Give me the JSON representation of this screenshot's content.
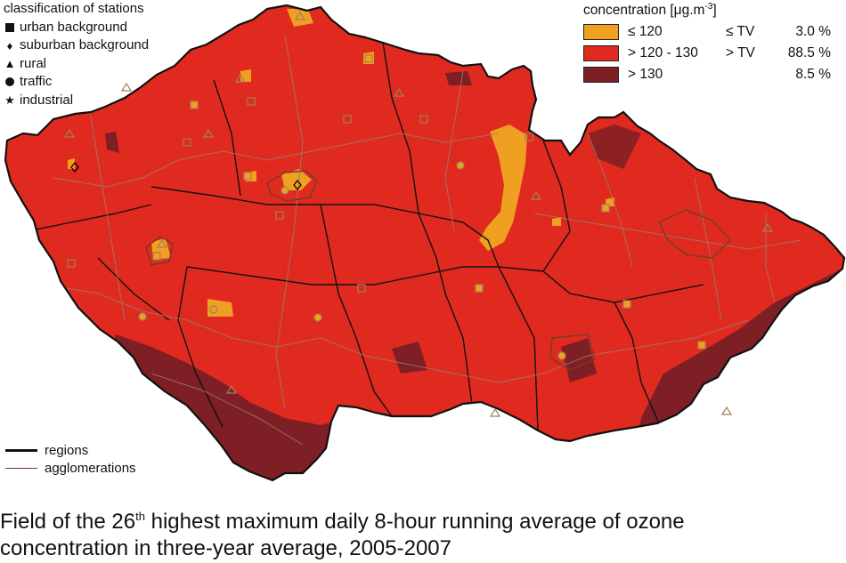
{
  "station_legend": {
    "title": "classification of stations",
    "items": [
      {
        "symbol": "square-icon",
        "label": "urban background"
      },
      {
        "symbol": "diamond-icon",
        "label": "suburban background"
      },
      {
        "symbol": "triangle-icon",
        "label": "rural"
      },
      {
        "symbol": "circle-icon",
        "label": "traffic"
      },
      {
        "symbol": "star-icon",
        "label": "industrial"
      }
    ]
  },
  "concentration_legend": {
    "title_prefix": "concentration [μg.m",
    "title_sup": "-3",
    "title_suffix": "]",
    "classes": [
      {
        "range": "≤ 120",
        "tv": "≤ TV",
        "percent": "3.0 %",
        "color": "#f0a020"
      },
      {
        "range": "> 120 - 130",
        "tv": "> TV",
        "percent": "88.5 %",
        "color": "#e02a20"
      },
      {
        "range": "> 130",
        "tv": "",
        "percent": "8.5 %",
        "color": "#7d1f24"
      }
    ]
  },
  "line_legend": {
    "regions": "regions",
    "agglomerations": "agglomerations"
  },
  "caption": {
    "part1": "Field of the 26",
    "sup": "th",
    "part2": " highest maximum daily 8-hour running average of ozone",
    "line2": "concentration in three-year average, 2005-2007"
  },
  "colors": {
    "base": "#e02a20",
    "low": "#f0a020",
    "high": "#7d1f24",
    "region_border": "#8f6f62",
    "outline": "#111111"
  }
}
